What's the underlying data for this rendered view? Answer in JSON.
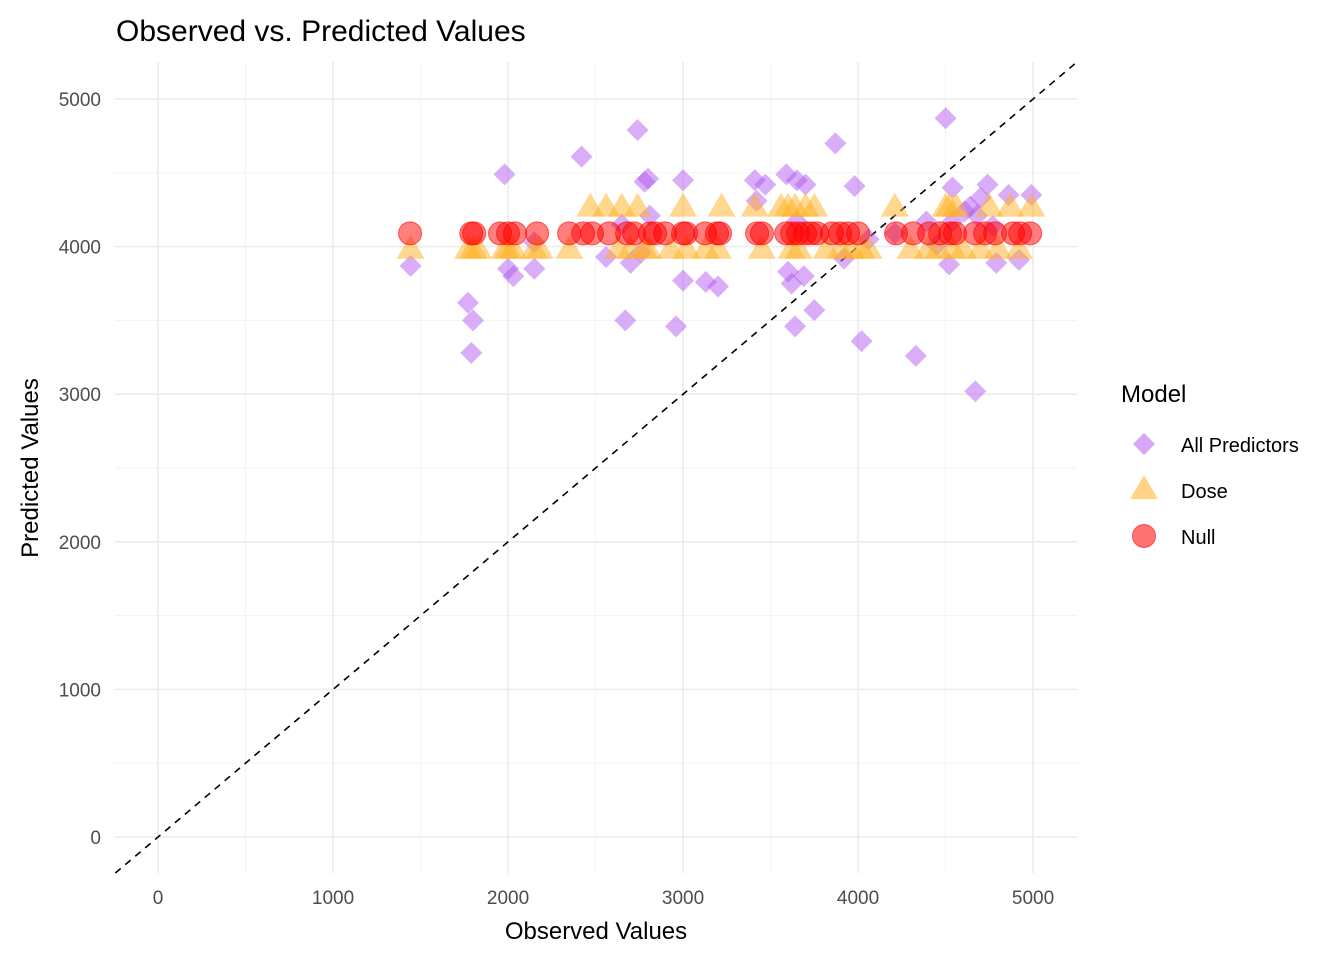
{
  "chart_data": {
    "type": "scatter",
    "title": "Observed vs. Predicted Values",
    "xlabel": "Observed Values",
    "ylabel": "Predicted Values",
    "xlim": [
      -246,
      5251
    ],
    "ylim": [
      -244,
      5251
    ],
    "x_ticks": [
      0,
      1000,
      2000,
      3000,
      4000,
      5000
    ],
    "y_ticks": [
      0,
      1000,
      2000,
      3000,
      4000,
      5000
    ],
    "x_tick_labels": [
      "0",
      "1000",
      "2000",
      "3000",
      "4000",
      "5000"
    ],
    "y_tick_labels": [
      "0",
      "1000",
      "2000",
      "3000",
      "4000",
      "5000"
    ],
    "grid": true,
    "reference_line": {
      "type": "identity",
      "style": "dashed",
      "color": "#000000"
    },
    "legend": {
      "title": "Model",
      "position": "right",
      "entries": [
        {
          "label": "All Predictors",
          "shape": "diamond",
          "color": "#a020f0"
        },
        {
          "label": "Dose",
          "shape": "triangle",
          "color": "#ffa500"
        },
        {
          "label": "Null",
          "shape": "circle",
          "color": "#ff0000"
        }
      ]
    },
    "series": [
      {
        "name": "All Predictors",
        "shape": "diamond",
        "color": "#a020f0",
        "opacity": 0.5,
        "points": [
          [
            1443,
            3870
          ],
          [
            1771,
            3620
          ],
          [
            1800,
            3500
          ],
          [
            1790,
            3280
          ],
          [
            1980,
            4490
          ],
          [
            2000,
            3850
          ],
          [
            2030,
            3800
          ],
          [
            2150,
            3850
          ],
          [
            2150,
            4030
          ],
          [
            2420,
            4610
          ],
          [
            2560,
            3930
          ],
          [
            2650,
            4150
          ],
          [
            2670,
            3500
          ],
          [
            2700,
            3890
          ],
          [
            2740,
            4790
          ],
          [
            2780,
            4440
          ],
          [
            2800,
            4460
          ],
          [
            2810,
            4210
          ],
          [
            2760,
            3960
          ],
          [
            2960,
            3460
          ],
          [
            3000,
            4450
          ],
          [
            3000,
            3770
          ],
          [
            3130,
            3760
          ],
          [
            3200,
            3730
          ],
          [
            3410,
            4450
          ],
          [
            3420,
            4310
          ],
          [
            3470,
            4420
          ],
          [
            3590,
            4490
          ],
          [
            3600,
            3830
          ],
          [
            3620,
            3750
          ],
          [
            3640,
            3460
          ],
          [
            3650,
            4450
          ],
          [
            3700,
            4420
          ],
          [
            3690,
            3800
          ],
          [
            3750,
            3570
          ],
          [
            3650,
            4170
          ],
          [
            3870,
            4700
          ],
          [
            3920,
            3920
          ],
          [
            3980,
            4410
          ],
          [
            4020,
            3360
          ],
          [
            4060,
            4050
          ],
          [
            4210,
            4090
          ],
          [
            4330,
            3260
          ],
          [
            4390,
            4170
          ],
          [
            4500,
            4870
          ],
          [
            4540,
            4400
          ],
          [
            4520,
            3880
          ],
          [
            4540,
            4170
          ],
          [
            4640,
            4270
          ],
          [
            4670,
            3020
          ],
          [
            4700,
            4330
          ],
          [
            4740,
            4420
          ],
          [
            4770,
            4140
          ],
          [
            4790,
            3890
          ],
          [
            4860,
            4350
          ],
          [
            4920,
            3910
          ],
          [
            4990,
            4350
          ],
          [
            4450,
            4010
          ],
          [
            4610,
            4240
          ],
          [
            4680,
            4210
          ]
        ]
      },
      {
        "name": "Dose",
        "shape": "triangle",
        "color": "#ffa500",
        "opacity": 0.5,
        "points": [
          [
            1443,
            3980
          ],
          [
            1771,
            3980
          ],
          [
            1800,
            3980
          ],
          [
            1830,
            3980
          ],
          [
            1980,
            3980
          ],
          [
            2000,
            3980
          ],
          [
            2030,
            3980
          ],
          [
            2150,
            3980
          ],
          [
            2180,
            3980
          ],
          [
            2350,
            3980
          ],
          [
            2470,
            4265
          ],
          [
            2560,
            4265
          ],
          [
            2650,
            4265
          ],
          [
            2740,
            4265
          ],
          [
            2780,
            3980
          ],
          [
            2700,
            3980
          ],
          [
            2630,
            3980
          ],
          [
            2800,
            3980
          ],
          [
            2930,
            3980
          ],
          [
            3000,
            4265
          ],
          [
            3020,
            3980
          ],
          [
            3130,
            3980
          ],
          [
            3200,
            3980
          ],
          [
            3220,
            4265
          ],
          [
            3410,
            4265
          ],
          [
            3450,
            3980
          ],
          [
            3560,
            4265
          ],
          [
            3600,
            4265
          ],
          [
            3620,
            3980
          ],
          [
            3640,
            4265
          ],
          [
            3660,
            3980
          ],
          [
            3700,
            4265
          ],
          [
            3750,
            4265
          ],
          [
            3820,
            3980
          ],
          [
            3900,
            3980
          ],
          [
            3960,
            3980
          ],
          [
            4020,
            3980
          ],
          [
            4060,
            3980
          ],
          [
            4210,
            4265
          ],
          [
            4300,
            3980
          ],
          [
            4400,
            3980
          ],
          [
            4460,
            3980
          ],
          [
            4500,
            4265
          ],
          [
            4520,
            4265
          ],
          [
            4540,
            3980
          ],
          [
            4560,
            4265
          ],
          [
            4600,
            3980
          ],
          [
            4700,
            3980
          ],
          [
            4750,
            4265
          ],
          [
            4800,
            3980
          ],
          [
            4870,
            4265
          ],
          [
            4920,
            3980
          ],
          [
            4990,
            4265
          ]
        ]
      },
      {
        "name": "Null",
        "shape": "circle",
        "color": "#ff0000",
        "opacity": 0.5,
        "points": [
          [
            1440,
            4090
          ],
          [
            1790,
            4090
          ],
          [
            1806,
            4090
          ],
          [
            1954,
            4090
          ],
          [
            2000,
            4090
          ],
          [
            2040,
            4090
          ],
          [
            2166,
            4090
          ],
          [
            2349,
            4090
          ],
          [
            2429,
            4090
          ],
          [
            2480,
            4090
          ],
          [
            2577,
            4090
          ],
          [
            2680,
            4090
          ],
          [
            2720,
            4090
          ],
          [
            2811,
            4090
          ],
          [
            2840,
            4090
          ],
          [
            2897,
            4090
          ],
          [
            3000,
            4090
          ],
          [
            3017,
            4090
          ],
          [
            3126,
            4090
          ],
          [
            3194,
            4090
          ],
          [
            3211,
            4090
          ],
          [
            3423,
            4090
          ],
          [
            3451,
            4090
          ],
          [
            3589,
            4090
          ],
          [
            3623,
            4090
          ],
          [
            3657,
            4090
          ],
          [
            3697,
            4090
          ],
          [
            3731,
            4090
          ],
          [
            3766,
            4090
          ],
          [
            3851,
            4090
          ],
          [
            3897,
            4090
          ],
          [
            3943,
            4090
          ],
          [
            4000,
            4090
          ],
          [
            4217,
            4090
          ],
          [
            4314,
            4090
          ],
          [
            4406,
            4090
          ],
          [
            4469,
            4090
          ],
          [
            4526,
            4090
          ],
          [
            4554,
            4090
          ],
          [
            4669,
            4090
          ],
          [
            4726,
            4090
          ],
          [
            4783,
            4090
          ],
          [
            4886,
            4090
          ],
          [
            4926,
            4090
          ],
          [
            4983,
            4090
          ]
        ]
      }
    ]
  }
}
